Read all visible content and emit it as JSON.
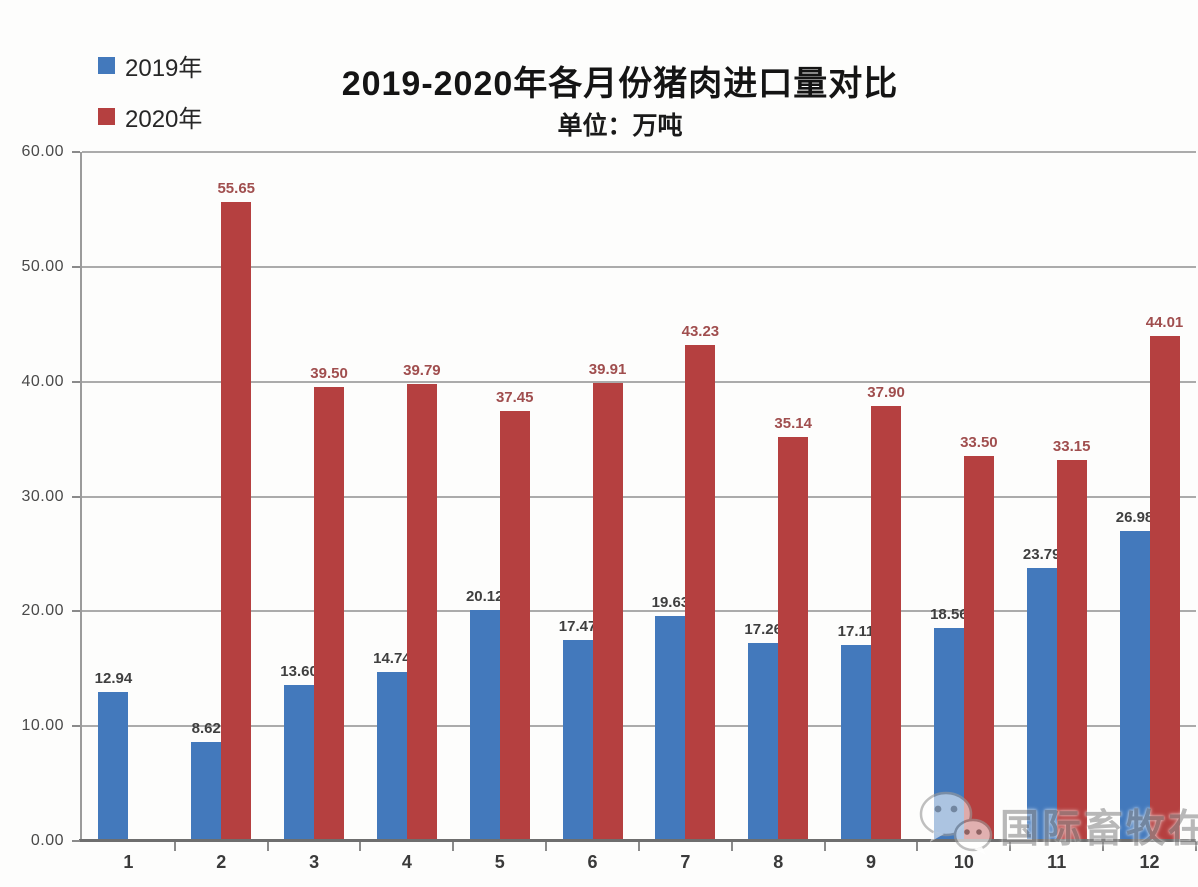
{
  "header": {
    "title": "2019-2020年各月份猪肉进口量对比",
    "subtitle": "单位：万吨"
  },
  "legend": {
    "items": [
      {
        "label": "2019年",
        "color": "#4379bc"
      },
      {
        "label": "2020年",
        "color": "#b54040"
      }
    ]
  },
  "watermark": {
    "icon": "wechat-icon",
    "text": "国际畜牧在线"
  },
  "chart_data": {
    "type": "bar",
    "title": "2019-2020年各月份猪肉进口量对比",
    "subtitle": "单位：万吨",
    "xlabel": "",
    "ylabel": "单位：万吨",
    "categories": [
      "1",
      "2",
      "3",
      "4",
      "5",
      "6",
      "7",
      "8",
      "9",
      "10",
      "11",
      "12"
    ],
    "series": [
      {
        "name": "2019年",
        "color": "#4379bc",
        "label_color": "#3f3f3f",
        "values": [
          12.94,
          8.62,
          13.6,
          14.74,
          20.12,
          17.47,
          19.63,
          17.26,
          17.11,
          18.56,
          23.79,
          26.98
        ]
      },
      {
        "name": "2020年",
        "color": "#b54040",
        "label_color": "#a04e4e",
        "values": [
          null,
          55.65,
          39.5,
          39.79,
          37.45,
          39.91,
          43.23,
          35.14,
          37.9,
          33.5,
          33.15,
          44.01
        ]
      }
    ],
    "ylim": [
      0,
      60
    ],
    "yticks": [
      "60.00",
      "50.00",
      "40.00",
      "30.00",
      "20.00",
      "10.00",
      "0.00"
    ],
    "grid": true,
    "legend_position": "top-left"
  }
}
